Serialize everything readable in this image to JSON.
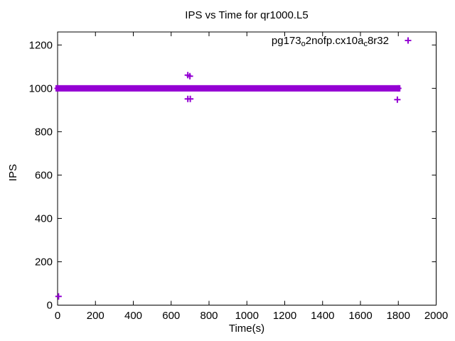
{
  "figure": {
    "background_color": "#FFFFFF",
    "border_color": "#000000",
    "text_color": "#000000"
  },
  "chart_data": {
    "type": "scatter",
    "title": "IPS vs Time for qr1000.L5",
    "xlabel": "Time(s)",
    "ylabel": "IPS",
    "xlim": [
      0,
      2000
    ],
    "ylim": [
      0,
      1260
    ],
    "xticks": [
      0,
      200,
      400,
      600,
      800,
      1000,
      1200,
      1400,
      1600,
      1800,
      2000
    ],
    "yticks": [
      0,
      200,
      400,
      600,
      800,
      1000,
      1200
    ],
    "grid": false,
    "tick_style": "inward-mirrored-on-all-borders",
    "legend": {
      "position": "top-right-inside",
      "entries": [
        {
          "label_plain": "pg173_o2nofp.cx10a_c8r32",
          "label_parts": [
            {
              "text": "pg173",
              "sub": false
            },
            {
              "text": "o",
              "sub": true
            },
            {
              "text": "2nofp.cx10a",
              "sub": false
            },
            {
              "text": "c",
              "sub": true
            },
            {
              "text": "8r32",
              "sub": false
            }
          ],
          "marker": "plus",
          "color": "#9400D3"
        }
      ]
    },
    "series": [
      {
        "name": "pg173_o2nofp.cx10a_c8r32",
        "marker": "plus",
        "marker_size_px": 9,
        "color": "#9400D3",
        "dense_band": {
          "x_start": 0,
          "x_end": 1800,
          "y_center": 1000,
          "y_spread": 12,
          "approx_point_count": 1800,
          "note": "one sample per second at ~1000 IPS; overlapping plus markers form a solid horizontal bar"
        },
        "outlier_points": [
          [
            5,
            40
          ],
          [
            688,
            1061
          ],
          [
            699,
            1056
          ],
          [
            688,
            951
          ],
          [
            701,
            951
          ],
          [
            1795,
            948
          ]
        ]
      }
    ]
  }
}
